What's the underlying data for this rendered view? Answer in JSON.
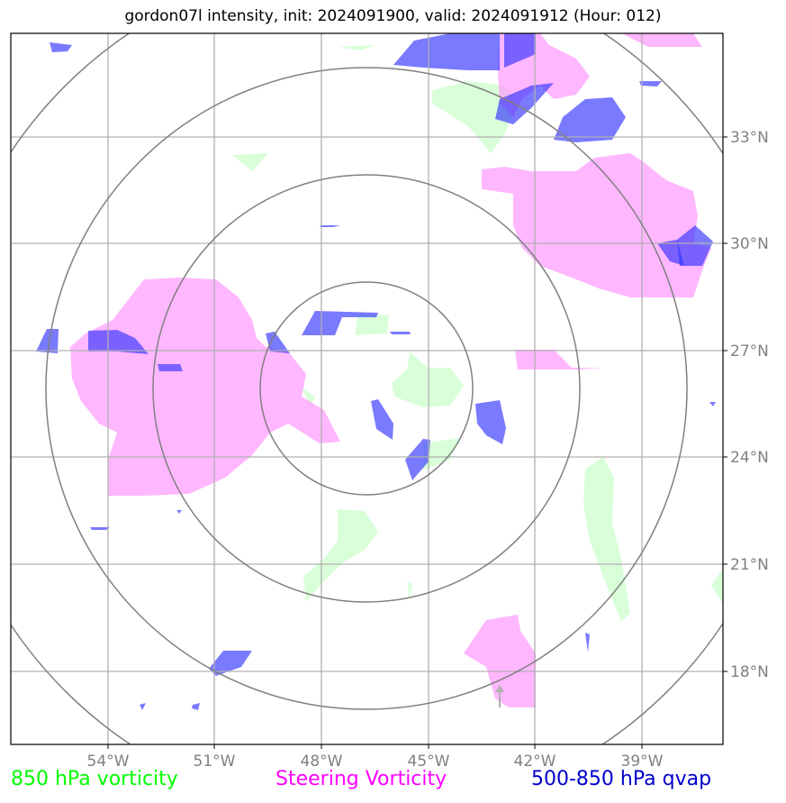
{
  "title": "gordon07l intensity, init: 2024091900, valid: 2024091912 (Hour: 012)",
  "x_ticks": [
    "54°W",
    "51°W",
    "48°W",
    "45°W",
    "42°W",
    "39°W"
  ],
  "y_ticks": [
    "33°N",
    "30°N",
    "27°N",
    "24°N",
    "21°N",
    "18°N"
  ],
  "legend": {
    "green": "850 hPa vorticity",
    "magenta": "Steering Vorticity",
    "blue": "500-850 hPa qvap"
  },
  "colors": {
    "green": "#00ff00",
    "green_fill": "#ccffcc",
    "magenta": "#ff00ff",
    "magenta_fill": "#ff99ff",
    "blue": "#0000cc",
    "blue_fill": "#3333ff",
    "grid": "#b0b0b0",
    "rings": "#808080"
  }
}
